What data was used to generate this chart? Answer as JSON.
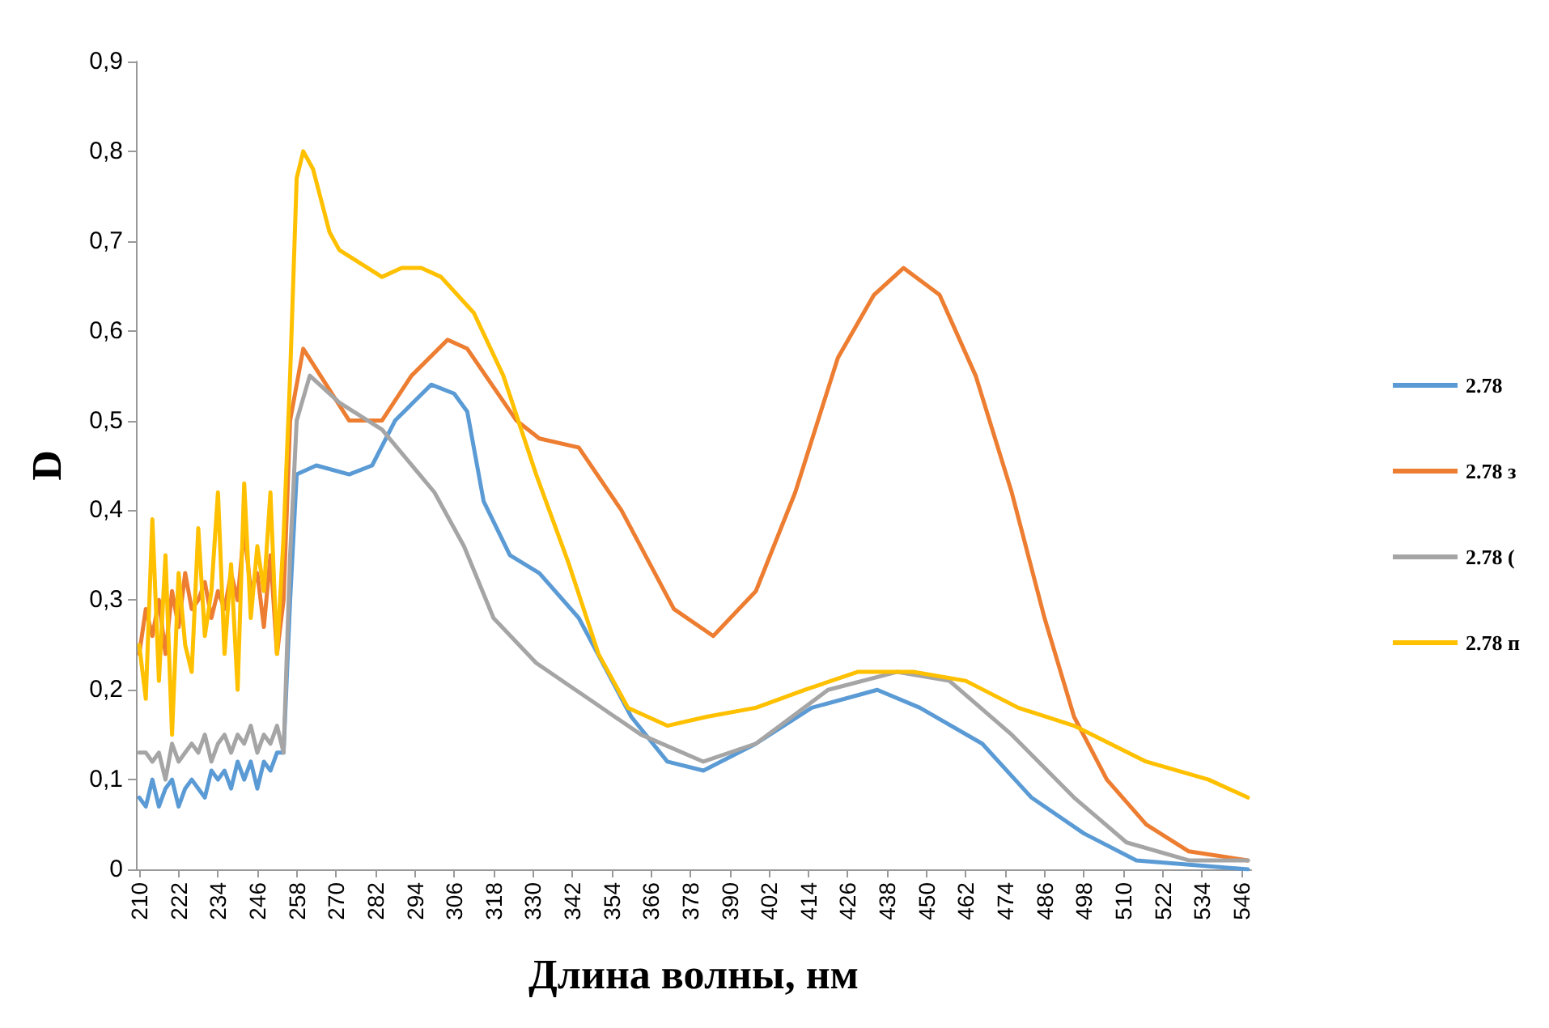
{
  "chart_data": {
    "type": "line",
    "xlabel": "Длина волны, нм",
    "ylabel": "D",
    "xlim": [
      209,
      549
    ],
    "xticks": [
      210,
      222,
      234,
      246,
      258,
      270,
      282,
      294,
      306,
      318,
      330,
      342,
      354,
      366,
      378,
      390,
      402,
      414,
      426,
      438,
      450,
      462,
      474,
      486,
      498,
      510,
      522,
      534,
      546
    ],
    "ylim": [
      0,
      0.9
    ],
    "yticks": [
      {
        "value": 0,
        "label": "0"
      },
      {
        "value": 0.1,
        "label": "0,1"
      },
      {
        "value": 0.2,
        "label": "0,2"
      },
      {
        "value": 0.3,
        "label": "0,3"
      },
      {
        "value": 0.4,
        "label": "0,4"
      },
      {
        "value": 0.5,
        "label": "0,5"
      },
      {
        "value": 0.6,
        "label": "0,6"
      },
      {
        "value": 0.7,
        "label": "0,7"
      },
      {
        "value": 0.8,
        "label": "0,8"
      },
      {
        "value": 0.9,
        "label": "0,9"
      }
    ],
    "grid": false,
    "legend": "right",
    "marker": "none",
    "line_style": "solid",
    "series": [
      {
        "name": "2.78",
        "color": "#5b9bd5",
        "x": [
          210,
          212,
          214,
          216,
          218,
          220,
          222,
          224,
          226,
          228,
          230,
          232,
          234,
          236,
          238,
          240,
          242,
          244,
          246,
          248,
          250,
          252,
          254,
          256,
          258,
          264,
          274,
          281,
          288,
          299,
          306,
          310,
          315,
          323,
          332,
          344,
          360,
          371,
          382,
          398,
          415,
          435,
          448,
          467,
          482,
          498,
          514,
          548
        ],
        "values": [
          0.08,
          0.07,
          0.1,
          0.07,
          0.09,
          0.1,
          0.07,
          0.09,
          0.1,
          0.09,
          0.08,
          0.11,
          0.1,
          0.11,
          0.09,
          0.12,
          0.1,
          0.12,
          0.09,
          0.12,
          0.11,
          0.13,
          0.13,
          0.3,
          0.44,
          0.45,
          0.44,
          0.45,
          0.5,
          0.54,
          0.53,
          0.51,
          0.41,
          0.35,
          0.33,
          0.28,
          0.17,
          0.12,
          0.11,
          0.14,
          0.18,
          0.2,
          0.18,
          0.14,
          0.08,
          0.04,
          0.01,
          0.0
        ]
      },
      {
        "name": "2.78 з",
        "color": "#ed7d31",
        "x": [
          210,
          212,
          214,
          216,
          218,
          220,
          222,
          224,
          226,
          228,
          230,
          232,
          234,
          236,
          238,
          240,
          242,
          244,
          246,
          248,
          250,
          252,
          254,
          256,
          260,
          274,
          284,
          293,
          304,
          310,
          325,
          332,
          344,
          357,
          373,
          385,
          398,
          410,
          423,
          434,
          443,
          454,
          465,
          476,
          486,
          495,
          505,
          517,
          530,
          548
        ],
        "values": [
          0.24,
          0.29,
          0.26,
          0.3,
          0.24,
          0.31,
          0.27,
          0.33,
          0.29,
          0.3,
          0.32,
          0.28,
          0.31,
          0.29,
          0.33,
          0.3,
          0.38,
          0.31,
          0.33,
          0.27,
          0.35,
          0.24,
          0.3,
          0.5,
          0.58,
          0.5,
          0.5,
          0.55,
          0.59,
          0.58,
          0.5,
          0.48,
          0.47,
          0.4,
          0.29,
          0.26,
          0.31,
          0.42,
          0.57,
          0.64,
          0.67,
          0.64,
          0.55,
          0.42,
          0.28,
          0.17,
          0.1,
          0.05,
          0.02,
          0.01
        ]
      },
      {
        "name": "2.78 (",
        "color": "#a5a5a5",
        "x": [
          210,
          212,
          214,
          216,
          218,
          220,
          222,
          224,
          226,
          228,
          230,
          232,
          234,
          236,
          238,
          240,
          242,
          244,
          246,
          248,
          250,
          252,
          254,
          256,
          258,
          262,
          271,
          284,
          300,
          309,
          318,
          331,
          343,
          347,
          363,
          382,
          398,
          420,
          441,
          457,
          476,
          495,
          511,
          530,
          548
        ],
        "values": [
          0.13,
          0.13,
          0.12,
          0.13,
          0.1,
          0.14,
          0.12,
          0.13,
          0.14,
          0.13,
          0.15,
          0.12,
          0.14,
          0.15,
          0.13,
          0.15,
          0.14,
          0.16,
          0.13,
          0.15,
          0.14,
          0.16,
          0.13,
          0.35,
          0.5,
          0.55,
          0.52,
          0.49,
          0.42,
          0.36,
          0.28,
          0.23,
          0.2,
          0.19,
          0.15,
          0.12,
          0.14,
          0.2,
          0.22,
          0.21,
          0.15,
          0.08,
          0.03,
          0.01,
          0.01
        ]
      },
      {
        "name": "2.78 п",
        "color": "#ffc000",
        "x": [
          210,
          212,
          214,
          216,
          218,
          220,
          222,
          224,
          226,
          228,
          230,
          232,
          234,
          236,
          238,
          240,
          242,
          244,
          246,
          248,
          250,
          252,
          254,
          256,
          258,
          260,
          263,
          268,
          271,
          284,
          290,
          296,
          302,
          312,
          321,
          331,
          341,
          350,
          359,
          371,
          383,
          398,
          413,
          429,
          446,
          462,
          478,
          495,
          517,
          536,
          548
        ],
        "values": [
          0.25,
          0.19,
          0.39,
          0.21,
          0.35,
          0.15,
          0.33,
          0.25,
          0.22,
          0.38,
          0.26,
          0.31,
          0.42,
          0.24,
          0.34,
          0.2,
          0.43,
          0.28,
          0.36,
          0.31,
          0.42,
          0.24,
          0.37,
          0.55,
          0.77,
          0.8,
          0.78,
          0.71,
          0.69,
          0.66,
          0.67,
          0.67,
          0.66,
          0.62,
          0.55,
          0.44,
          0.34,
          0.24,
          0.18,
          0.16,
          0.17,
          0.18,
          0.2,
          0.22,
          0.22,
          0.21,
          0.18,
          0.16,
          0.12,
          0.1,
          0.08
        ]
      }
    ]
  }
}
